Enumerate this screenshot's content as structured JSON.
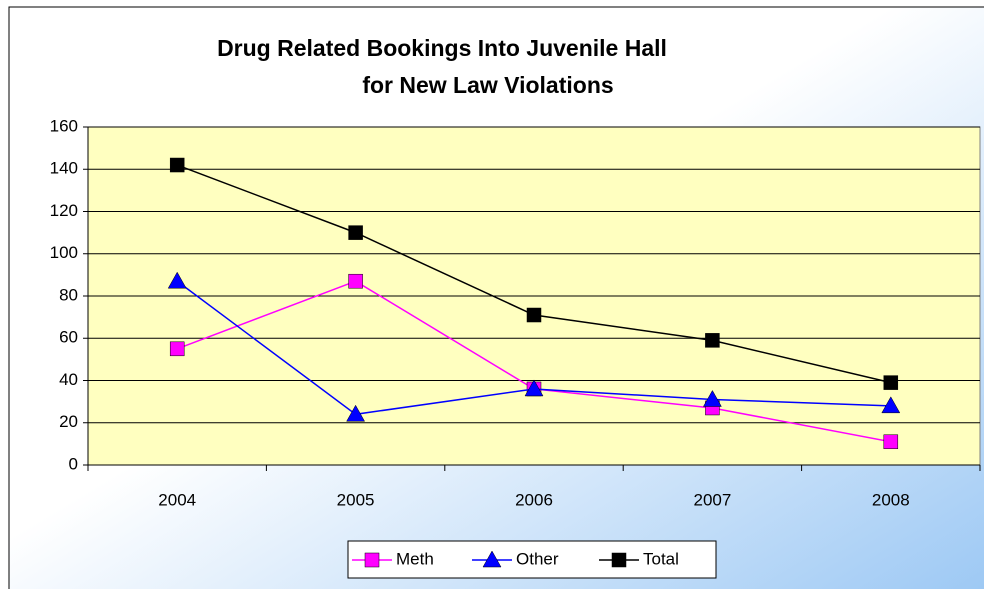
{
  "chart_data": {
    "type": "line",
    "title": [
      "Drug Related Bookings Into Juvenile Hall",
      "for New Law Violations"
    ],
    "categories": [
      "2004",
      "2005",
      "2006",
      "2007",
      "2008"
    ],
    "series": [
      {
        "name": "Meth",
        "color": "#ff00ff",
        "marker": "square",
        "values": [
          55,
          87,
          36,
          27,
          11
        ]
      },
      {
        "name": "Other",
        "color": "#0000ff",
        "marker": "triangle",
        "values": [
          87,
          24,
          36,
          31,
          28
        ]
      },
      {
        "name": "Total",
        "color": "#000000",
        "marker": "square",
        "values": [
          142,
          110,
          71,
          59,
          39
        ]
      }
    ],
    "ylim": [
      0,
      160
    ],
    "yticks": [
      0,
      20,
      40,
      60,
      80,
      100,
      120,
      140,
      160
    ],
    "grid": true,
    "legend": "bottom"
  }
}
